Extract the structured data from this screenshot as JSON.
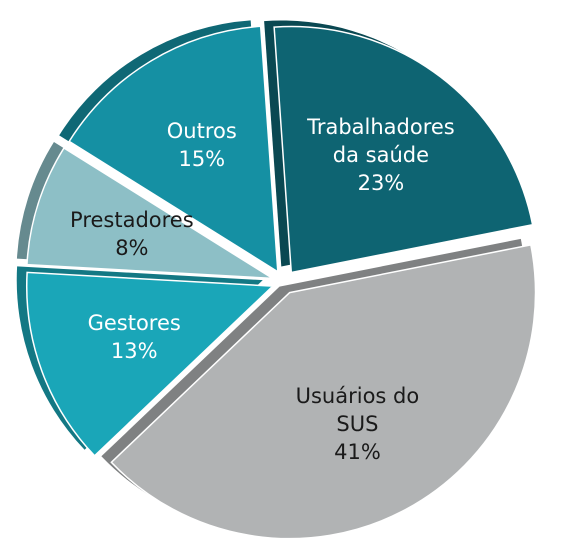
{
  "chart_data": {
    "type": "pie",
    "categories": [
      "Trabalhadores da saúde",
      "Usuários do SUS",
      "Gestores",
      "Prestadores",
      "Outros"
    ],
    "values": [
      23,
      41,
      13,
      8,
      15
    ],
    "value_labels": [
      "23%",
      "41%",
      "13%",
      "8%",
      "15%"
    ],
    "colors": [
      "#0e6472",
      "#b1b3b4",
      "#1aa6b8",
      "#8dbfc6",
      "#1590a3"
    ],
    "start_angle": -4
  }
}
